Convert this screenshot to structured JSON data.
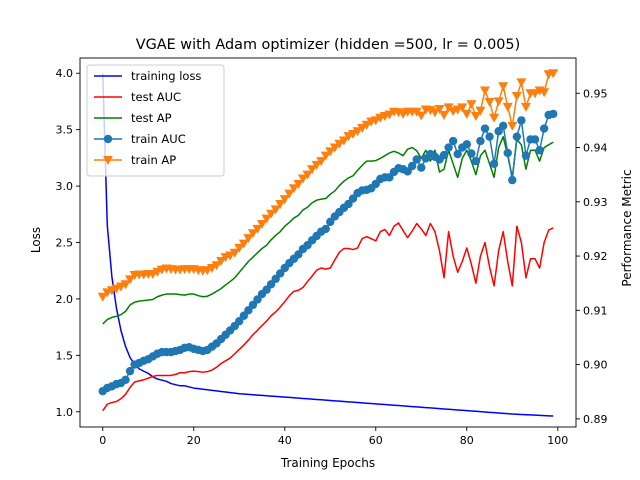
{
  "chart_data": {
    "type": "line",
    "title": "VGAE with Adam optimizer (hidden =500, lr = 0.005)",
    "xlabel": "Training Epochs",
    "ylabel_left": "Loss",
    "ylabel_right": "Performance Metric",
    "xlim": [
      -5,
      104
    ],
    "ylim_left": [
      0.865,
      4.135
    ],
    "ylim_right": [
      0.8885,
      0.9565
    ],
    "x_ticks": [
      0,
      20,
      40,
      60,
      80,
      100
    ],
    "y_left_ticks": [
      "1.0",
      "1.5",
      "2.0",
      "2.5",
      "3.0",
      "3.5",
      "4.0"
    ],
    "y_right_ticks": [
      "0.89",
      "0.90",
      "0.91",
      "0.92",
      "0.93",
      "0.94",
      "0.95"
    ],
    "legend_position": "top-left",
    "x": [
      0,
      1,
      2,
      3,
      4,
      5,
      6,
      7,
      8,
      9,
      10,
      11,
      12,
      13,
      14,
      15,
      16,
      17,
      18,
      19,
      20,
      21,
      22,
      23,
      24,
      25,
      26,
      27,
      28,
      29,
      30,
      31,
      32,
      33,
      34,
      35,
      36,
      37,
      38,
      39,
      40,
      41,
      42,
      43,
      44,
      45,
      46,
      47,
      48,
      49,
      50,
      51,
      52,
      53,
      54,
      55,
      56,
      57,
      58,
      59,
      60,
      61,
      62,
      63,
      64,
      65,
      66,
      67,
      68,
      69,
      70,
      71,
      72,
      73,
      74,
      75,
      76,
      77,
      78,
      79,
      80,
      81,
      82,
      83,
      84,
      85,
      86,
      87,
      88,
      89,
      90,
      91,
      92,
      93,
      94,
      95,
      96,
      97,
      98,
      99
    ],
    "series": [
      {
        "name": "training loss",
        "axis": "left",
        "color": "#0000ff",
        "marker": "none",
        "values": [
          4.0,
          2.65,
          2.2,
          1.92,
          1.72,
          1.58,
          1.48,
          1.42,
          1.38,
          1.36,
          1.34,
          1.31,
          1.29,
          1.28,
          1.27,
          1.25,
          1.24,
          1.23,
          1.23,
          1.22,
          1.21,
          1.205,
          1.2,
          1.195,
          1.19,
          1.185,
          1.18,
          1.175,
          1.17,
          1.165,
          1.16,
          1.157,
          1.154,
          1.151,
          1.148,
          1.145,
          1.142,
          1.139,
          1.136,
          1.133,
          1.13,
          1.127,
          1.124,
          1.121,
          1.118,
          1.115,
          1.112,
          1.109,
          1.106,
          1.103,
          1.1,
          1.097,
          1.094,
          1.091,
          1.088,
          1.085,
          1.082,
          1.079,
          1.076,
          1.073,
          1.07,
          1.067,
          1.064,
          1.061,
          1.058,
          1.055,
          1.052,
          1.049,
          1.046,
          1.043,
          1.04,
          1.037,
          1.034,
          1.031,
          1.028,
          1.025,
          1.022,
          1.019,
          1.016,
          1.013,
          1.01,
          1.007,
          1.004,
          1.001,
          0.998,
          0.995,
          0.992,
          0.989,
          0.986,
          0.983,
          0.98,
          0.978,
          0.976,
          0.974,
          0.972,
          0.97,
          0.968,
          0.966,
          0.964,
          0.962
        ]
      },
      {
        "name": "test AUC",
        "axis": "right",
        "color": "#ff0000",
        "marker": "none",
        "values": [
          0.8915,
          0.8927,
          0.893,
          0.8932,
          0.8937,
          0.8945,
          0.8958,
          0.8968,
          0.897,
          0.8972,
          0.8975,
          0.8978,
          0.898,
          0.898,
          0.898,
          0.898,
          0.8982,
          0.8985,
          0.8985,
          0.8987,
          0.8988,
          0.8987,
          0.8986,
          0.8987,
          0.899,
          0.8995,
          0.9002,
          0.9007,
          0.9012,
          0.902,
          0.9028,
          0.9036,
          0.9045,
          0.9055,
          0.9063,
          0.9072,
          0.908,
          0.909,
          0.9097,
          0.9106,
          0.9116,
          0.9127,
          0.9135,
          0.9137,
          0.9142,
          0.9153,
          0.9163,
          0.9174,
          0.9178,
          0.9176,
          0.9178,
          0.9193,
          0.9207,
          0.9214,
          0.9214,
          0.9212,
          0.9215,
          0.9232,
          0.9236,
          0.9232,
          0.9228,
          0.9245,
          0.9249,
          0.9238,
          0.9255,
          0.9261,
          0.9247,
          0.9234,
          0.9246,
          0.926,
          0.925,
          0.9238,
          0.926,
          0.9245,
          0.921,
          0.916,
          0.9245,
          0.92,
          0.917,
          0.919,
          0.9215,
          0.9185,
          0.915,
          0.92,
          0.9225,
          0.918,
          0.9145,
          0.921,
          0.9245,
          0.919,
          0.9145,
          0.9255,
          0.9225,
          0.916,
          0.9195,
          0.9195,
          0.9178,
          0.9225,
          0.9248,
          0.9252
        ]
      },
      {
        "name": "test AP",
        "axis": "right",
        "color": "#008000",
        "marker": "none",
        "values": [
          0.9075,
          0.9083,
          0.9087,
          0.9089,
          0.9092,
          0.9098,
          0.911,
          0.9115,
          0.9117,
          0.9118,
          0.9119,
          0.912,
          0.9125,
          0.9128,
          0.913,
          0.913,
          0.913,
          0.9129,
          0.9128,
          0.913,
          0.913,
          0.9127,
          0.9125,
          0.9126,
          0.913,
          0.9135,
          0.914,
          0.9147,
          0.9153,
          0.916,
          0.917,
          0.918,
          0.919,
          0.9198,
          0.9206,
          0.9214,
          0.922,
          0.923,
          0.9238,
          0.9245,
          0.9255,
          0.9262,
          0.927,
          0.9275,
          0.9285,
          0.929,
          0.9298,
          0.9303,
          0.9305,
          0.9306,
          0.9314,
          0.932,
          0.933,
          0.9338,
          0.9344,
          0.9348,
          0.9358,
          0.9367,
          0.9375,
          0.9375,
          0.9376,
          0.938,
          0.9385,
          0.939,
          0.9393,
          0.939,
          0.9385,
          0.9397,
          0.94,
          0.9394,
          0.938,
          0.9395,
          0.9375,
          0.9395,
          0.9355,
          0.936,
          0.9395,
          0.937,
          0.9345,
          0.938,
          0.9395,
          0.9375,
          0.935,
          0.9385,
          0.9395,
          0.937,
          0.9345,
          0.94,
          0.942,
          0.9385,
          0.9345,
          0.9415,
          0.9405,
          0.936,
          0.9395,
          0.9395,
          0.9375,
          0.94,
          0.9405,
          0.941
        ]
      },
      {
        "name": "train AUC",
        "axis": "right",
        "color": "#1f77b4",
        "marker": "circle",
        "values": [
          0.8951,
          0.8957,
          0.896,
          0.8964,
          0.8966,
          0.8972,
          0.8988,
          0.9,
          0.9003,
          0.9007,
          0.901,
          0.9015,
          0.902,
          0.9023,
          0.9023,
          0.9023,
          0.9025,
          0.9027,
          0.9031,
          0.9032,
          0.9029,
          0.9027,
          0.9025,
          0.9027,
          0.9033,
          0.9039,
          0.9047,
          0.9055,
          0.9063,
          0.9071,
          0.908,
          0.909,
          0.91,
          0.911,
          0.912,
          0.913,
          0.9138,
          0.9148,
          0.9158,
          0.9168,
          0.9178,
          0.9187,
          0.9195,
          0.9203,
          0.9213,
          0.922,
          0.9229,
          0.9237,
          0.9245,
          0.925,
          0.9263,
          0.9273,
          0.9281,
          0.9289,
          0.9296,
          0.9306,
          0.9316,
          0.9321,
          0.9322,
          0.9325,
          0.9333,
          0.9342,
          0.9345,
          0.9345,
          0.9355,
          0.9362,
          0.936,
          0.9356,
          0.9366,
          0.9378,
          0.9363,
          0.938,
          0.9388,
          0.9383,
          0.9378,
          0.9386,
          0.94,
          0.9412,
          0.9388,
          0.94,
          0.9406,
          0.9389,
          0.9375,
          0.9412,
          0.9435,
          0.942,
          0.937,
          0.943,
          0.944,
          0.939,
          0.934,
          0.942,
          0.945,
          0.9385,
          0.9415,
          0.9415,
          0.9395,
          0.9435,
          0.946,
          0.9462
        ]
      },
      {
        "name": "train AP",
        "axis": "right",
        "color": "#ff7f0e",
        "marker": "triangle-down",
        "values": [
          0.9125,
          0.9133,
          0.9137,
          0.914,
          0.9144,
          0.9148,
          0.9157,
          0.9165,
          0.9166,
          0.9166,
          0.9167,
          0.9167,
          0.9171,
          0.9175,
          0.9177,
          0.9176,
          0.9175,
          0.9175,
          0.9176,
          0.9176,
          0.9176,
          0.9174,
          0.9173,
          0.9174,
          0.9178,
          0.9183,
          0.9191,
          0.9198,
          0.9201,
          0.9206,
          0.9215,
          0.9223,
          0.9233,
          0.9242,
          0.925,
          0.9259,
          0.9269,
          0.9278,
          0.9286,
          0.9296,
          0.9305,
          0.9315,
          0.9325,
          0.9333,
          0.9343,
          0.935,
          0.936,
          0.9368,
          0.9375,
          0.9385,
          0.9393,
          0.94,
          0.9407,
          0.9413,
          0.9421,
          0.9425,
          0.943,
          0.9436,
          0.9442,
          0.9448,
          0.945,
          0.9455,
          0.9458,
          0.9461,
          0.9466,
          0.9465,
          0.9462,
          0.9466,
          0.9466,
          0.9466,
          0.9459,
          0.947,
          0.9469,
          0.9465,
          0.9471,
          0.946,
          0.9474,
          0.9467,
          0.947,
          0.9474,
          0.9462,
          0.948,
          0.9458,
          0.9468,
          0.9505,
          0.9484,
          0.9455,
          0.9485,
          0.9513,
          0.9475,
          0.944,
          0.9495,
          0.952,
          0.9475,
          0.95,
          0.95,
          0.9505,
          0.9502,
          0.9535,
          0.9537
        ]
      }
    ]
  }
}
